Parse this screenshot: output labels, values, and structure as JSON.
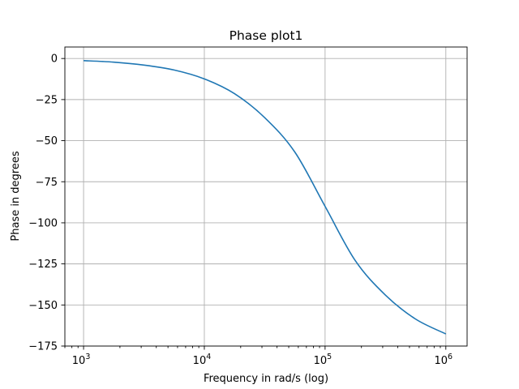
{
  "chart_data": {
    "type": "line",
    "title": "Phase plot1",
    "xlabel": "Frequency in rad/s (log)",
    "ylabel": "Phase in degrees",
    "xscale": "log",
    "xlim": [
      700,
      1500000
    ],
    "ylim": [
      -175,
      7
    ],
    "grid": true,
    "x_ticks": [
      {
        "value": 1000,
        "base": "10",
        "exp": "3"
      },
      {
        "value": 10000,
        "base": "10",
        "exp": "4"
      },
      {
        "value": 100000,
        "base": "10",
        "exp": "5"
      },
      {
        "value": 1000000,
        "base": "10",
        "exp": "6"
      }
    ],
    "y_ticks": [
      {
        "value": 0,
        "label": "0"
      },
      {
        "value": -25,
        "label": "−25"
      },
      {
        "value": -50,
        "label": "−50"
      },
      {
        "value": -75,
        "label": "−75"
      },
      {
        "value": -100,
        "label": "−100"
      },
      {
        "value": -125,
        "label": "−125"
      },
      {
        "value": -150,
        "label": "−150"
      },
      {
        "value": -175,
        "label": "−175"
      }
    ],
    "series": [
      {
        "color": "#1f77b4",
        "x": [
          1000,
          1778,
          3162,
          5623,
          10000,
          17783,
          31623,
          56234,
          100000,
          177828,
          316228,
          562341,
          1000000
        ],
        "y": [
          -1.3,
          -2.2,
          -4.0,
          -7.0,
          -12.4,
          -21.4,
          -36.0,
          -57.0,
          -90.0,
          -123.0,
          -144.0,
          -158.6,
          -167.6
        ]
      }
    ]
  }
}
